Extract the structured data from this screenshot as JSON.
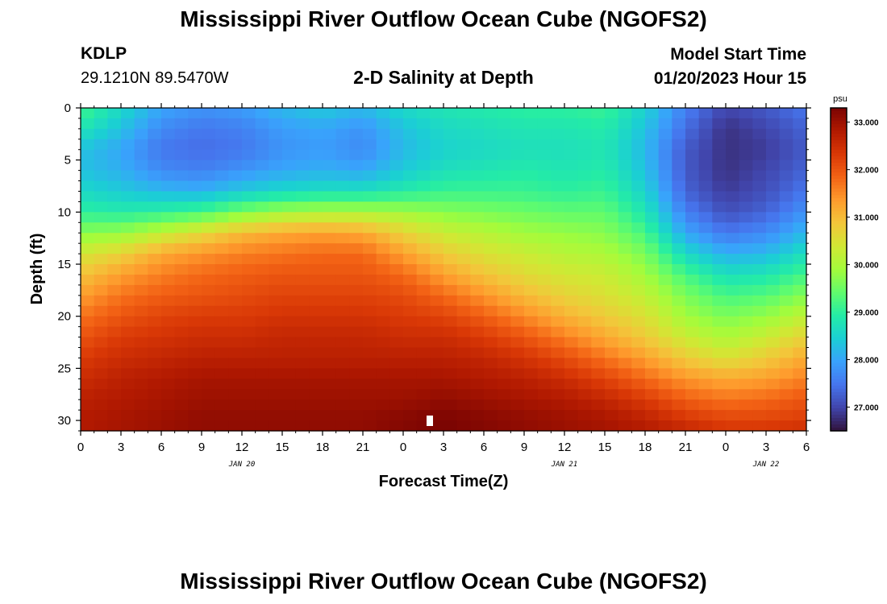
{
  "header": {
    "title": "Mississippi River Outflow Ocean Cube (NGOFS2)",
    "station_id": "KDLP",
    "station_coords": "29.1210N  89.5470W",
    "subtitle": "2-D Salinity at Depth",
    "start_label": "Model Start Time",
    "start_value": "01/20/2023 Hour 15"
  },
  "footer": {
    "title": "Mississippi River Outflow Ocean Cube (NGOFS2)"
  },
  "chart_data": {
    "type": "heatmap",
    "title": "2-D Salinity at Depth",
    "xlabel": "Forecast Time(Z)",
    "ylabel": "Depth (ft)",
    "x_range_hours": [
      0,
      54
    ],
    "x_ticks": [
      {
        "h": 0,
        "label": "0"
      },
      {
        "h": 3,
        "label": "3"
      },
      {
        "h": 6,
        "label": "6"
      },
      {
        "h": 9,
        "label": "9"
      },
      {
        "h": 12,
        "label": "12"
      },
      {
        "h": 15,
        "label": "15"
      },
      {
        "h": 18,
        "label": "18"
      },
      {
        "h": 21,
        "label": "21"
      },
      {
        "h": 24,
        "label": "0"
      },
      {
        "h": 27,
        "label": "3"
      },
      {
        "h": 30,
        "label": "6"
      },
      {
        "h": 33,
        "label": "9"
      },
      {
        "h": 36,
        "label": "12"
      },
      {
        "h": 39,
        "label": "15"
      },
      {
        "h": 42,
        "label": "18"
      },
      {
        "h": 45,
        "label": "21"
      },
      {
        "h": 48,
        "label": "0"
      },
      {
        "h": 51,
        "label": "3"
      },
      {
        "h": 54,
        "label": "6"
      }
    ],
    "date_labels": [
      {
        "h": 12,
        "label": "JAN 20"
      },
      {
        "h": 36,
        "label": "JAN 21"
      },
      {
        "h": 51,
        "label": "JAN 22"
      }
    ],
    "y_range_ft": [
      0,
      31
    ],
    "y_ticks": [
      0,
      5,
      10,
      15,
      20,
      25,
      30
    ],
    "colorbar": {
      "unit": "psu",
      "range": [
        26.5,
        33.3
      ],
      "ticks": [
        "33.000",
        "32.000",
        "31.000",
        "30.000",
        "29.000",
        "28.000",
        "27.000"
      ],
      "tick_values": [
        33,
        32,
        31,
        30,
        29,
        28,
        27
      ],
      "colormap": [
        "#30123b",
        "#4145ab",
        "#4675ed",
        "#39a2fc",
        "#1bcfd4",
        "#24eca6",
        "#61fc6c",
        "#a4fc3b",
        "#d1e834",
        "#f3c63a",
        "#fe9b2d",
        "#f36315",
        "#d93806",
        "#b11901",
        "#7a0402"
      ]
    },
    "depth_profile_nodes_hours": [
      0,
      3,
      6,
      9,
      12,
      15,
      18,
      21,
      24,
      27,
      30,
      33,
      36,
      39,
      42,
      45,
      48,
      51,
      54
    ],
    "depth_profile_nodes_ft": [
      0,
      2,
      4,
      6,
      8,
      10,
      12,
      14,
      16,
      18,
      20,
      22,
      24,
      26,
      28,
      30,
      31
    ],
    "salinity_psu": [
      [
        29.2,
        28.8,
        28.3,
        28.3,
        28.6,
        29.0,
        29.7,
        30.4,
        30.9,
        31.3,
        31.7,
        32.0,
        32.3,
        32.5,
        32.7,
        32.8,
        32.8
      ],
      [
        28.6,
        28.3,
        28.0,
        28.1,
        28.4,
        28.9,
        29.8,
        30.7,
        31.3,
        31.7,
        32.0,
        32.3,
        32.5,
        32.7,
        32.8,
        32.9,
        32.9
      ],
      [
        28.0,
        27.7,
        27.5,
        27.7,
        28.2,
        29.0,
        30.2,
        31.2,
        31.6,
        31.9,
        32.2,
        32.4,
        32.6,
        32.8,
        32.9,
        33.0,
        33.0
      ],
      [
        27.8,
        27.5,
        27.4,
        27.6,
        28.1,
        29.2,
        30.6,
        31.4,
        31.8,
        32.0,
        32.3,
        32.5,
        32.7,
        32.9,
        33.0,
        33.1,
        33.1
      ],
      [
        27.9,
        27.6,
        27.5,
        27.8,
        28.4,
        29.6,
        31.0,
        31.6,
        31.9,
        32.1,
        32.3,
        32.5,
        32.7,
        32.9,
        33.0,
        33.1,
        33.1
      ],
      [
        28.2,
        27.9,
        27.8,
        28.0,
        28.6,
        29.9,
        31.2,
        31.7,
        32.0,
        32.2,
        32.4,
        32.6,
        32.7,
        32.9,
        33.0,
        33.1,
        33.1
      ],
      [
        28.4,
        28.0,
        27.9,
        28.1,
        28.7,
        30.0,
        31.3,
        31.8,
        32.0,
        32.2,
        32.4,
        32.6,
        32.7,
        32.9,
        33.0,
        33.1,
        33.1
      ],
      [
        28.2,
        27.8,
        27.7,
        28.0,
        28.7,
        30.0,
        31.2,
        31.8,
        32.0,
        32.2,
        32.4,
        32.6,
        32.7,
        32.9,
        33.0,
        33.1,
        33.1
      ],
      [
        28.6,
        28.3,
        28.2,
        28.4,
        28.9,
        29.9,
        30.7,
        31.3,
        31.8,
        32.1,
        32.3,
        32.5,
        32.7,
        32.9,
        33.0,
        33.2,
        33.2
      ],
      [
        28.8,
        28.6,
        28.5,
        28.7,
        29.1,
        29.7,
        30.3,
        30.8,
        31.3,
        31.8,
        32.2,
        32.5,
        32.7,
        32.9,
        33.1,
        33.3,
        33.3
      ],
      [
        28.9,
        28.7,
        28.6,
        28.8,
        29.1,
        29.6,
        30.1,
        30.5,
        30.9,
        31.4,
        31.9,
        32.3,
        32.6,
        32.8,
        33.0,
        33.2,
        33.2
      ],
      [
        29.0,
        28.8,
        28.7,
        28.9,
        29.1,
        29.5,
        29.9,
        30.3,
        30.6,
        31.0,
        31.5,
        32.0,
        32.4,
        32.7,
        32.9,
        33.1,
        33.1
      ],
      [
        29.0,
        28.8,
        28.7,
        28.8,
        29.0,
        29.4,
        29.8,
        30.1,
        30.4,
        30.7,
        31.1,
        31.6,
        32.1,
        32.5,
        32.8,
        33.0,
        33.0
      ],
      [
        29.1,
        28.9,
        28.8,
        28.9,
        29.1,
        29.4,
        29.7,
        30.0,
        30.3,
        30.5,
        30.8,
        31.2,
        31.7,
        32.2,
        32.6,
        32.9,
        32.9
      ],
      [
        28.5,
        28.3,
        28.2,
        28.3,
        28.5,
        28.8,
        29.2,
        29.6,
        29.9,
        30.2,
        30.5,
        30.8,
        31.3,
        31.8,
        32.3,
        32.7,
        32.8
      ],
      [
        27.6,
        27.4,
        27.2,
        27.2,
        27.3,
        27.6,
        28.0,
        28.6,
        29.2,
        29.6,
        29.9,
        30.3,
        30.8,
        31.4,
        31.9,
        32.4,
        32.6
      ],
      [
        27.0,
        26.8,
        26.8,
        26.8,
        26.9,
        27.1,
        27.5,
        28.1,
        28.7,
        29.2,
        29.6,
        30.0,
        30.5,
        31.2,
        31.7,
        32.2,
        32.4
      ],
      [
        27.2,
        27.0,
        26.9,
        27.0,
        27.1,
        27.3,
        27.7,
        28.2,
        28.8,
        29.3,
        29.8,
        30.3,
        30.8,
        31.3,
        31.8,
        32.2,
        32.4
      ],
      [
        27.5,
        27.3,
        27.2,
        27.3,
        27.5,
        27.8,
        28.2,
        28.7,
        29.2,
        29.7,
        30.2,
        30.7,
        31.2,
        31.6,
        32.0,
        32.3,
        32.5
      ]
    ]
  }
}
